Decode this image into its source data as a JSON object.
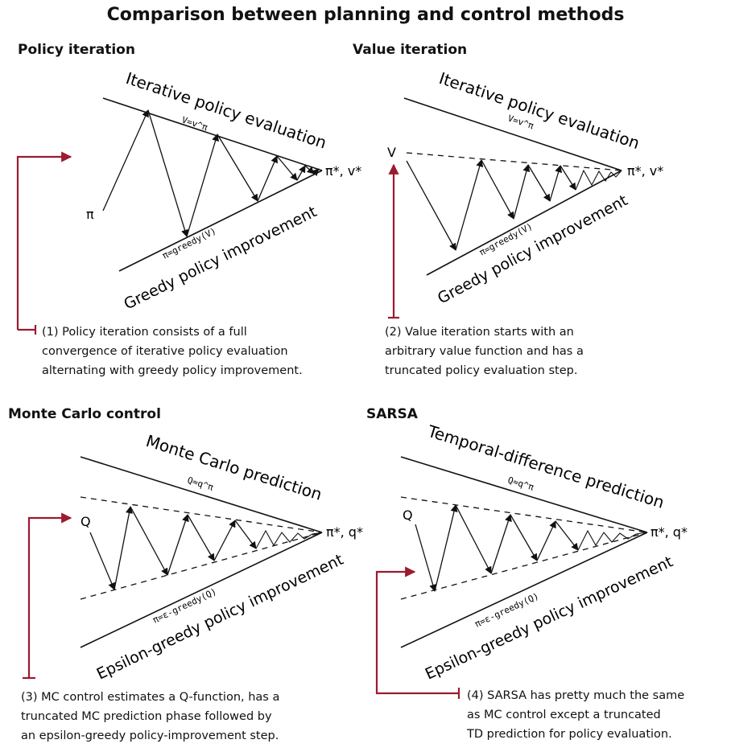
{
  "title": "Comparison between planning and control methods",
  "colors": {
    "accent": "#9b1b30",
    "ink": "#111111"
  },
  "panels": [
    {
      "title": "Policy iteration",
      "top_label": "Iterative policy evaluation",
      "top_sub": "V=v^π",
      "bottom_label": "Greedy policy improvement",
      "bottom_sub": "π=greedy(V)",
      "start_label": "π",
      "end_label": "π*, v*",
      "note_lines": [
        "(1) Policy iteration consists of a full",
        "convergence of iterative policy evaluation",
        "alternating with greedy policy improvement."
      ]
    },
    {
      "title": "Value iteration",
      "top_label": "Iterative policy evaluation",
      "top_sub": "V=v^π",
      "bottom_label": "Greedy policy improvement",
      "bottom_sub": "π=greedy(V)",
      "start_label": "V",
      "end_label": "π*, v*",
      "note_lines": [
        "(2) Value iteration starts with an",
        "arbitrary value function and has a",
        "truncated policy evaluation step."
      ]
    },
    {
      "title": "Monte Carlo control",
      "top_label": "Monte Carlo prediction",
      "top_sub": "Q≈q^π",
      "bottom_label": "Epsilon-greedy policy improvement",
      "bottom_sub": "π=ε-greedy(Q)",
      "start_label": "Q",
      "end_label": "π*, q*",
      "note_lines": [
        "(3) MC control estimates a Q-function, has a",
        "truncated MC prediction phase followed by",
        "an epsilon-greedy policy-improvement step."
      ]
    },
    {
      "title": "SARSA",
      "top_label": "Temporal-difference prediction",
      "top_sub": "Q≈q^π",
      "bottom_label": "Epsilon-greedy policy improvement",
      "bottom_sub": "π=ε-greedy(Q)",
      "start_label": "Q",
      "end_label": "π*, q*",
      "note_lines": [
        "(4) SARSA has pretty much the same",
        "as MC control except a truncated",
        "TD prediction for policy evaluation."
      ]
    }
  ]
}
